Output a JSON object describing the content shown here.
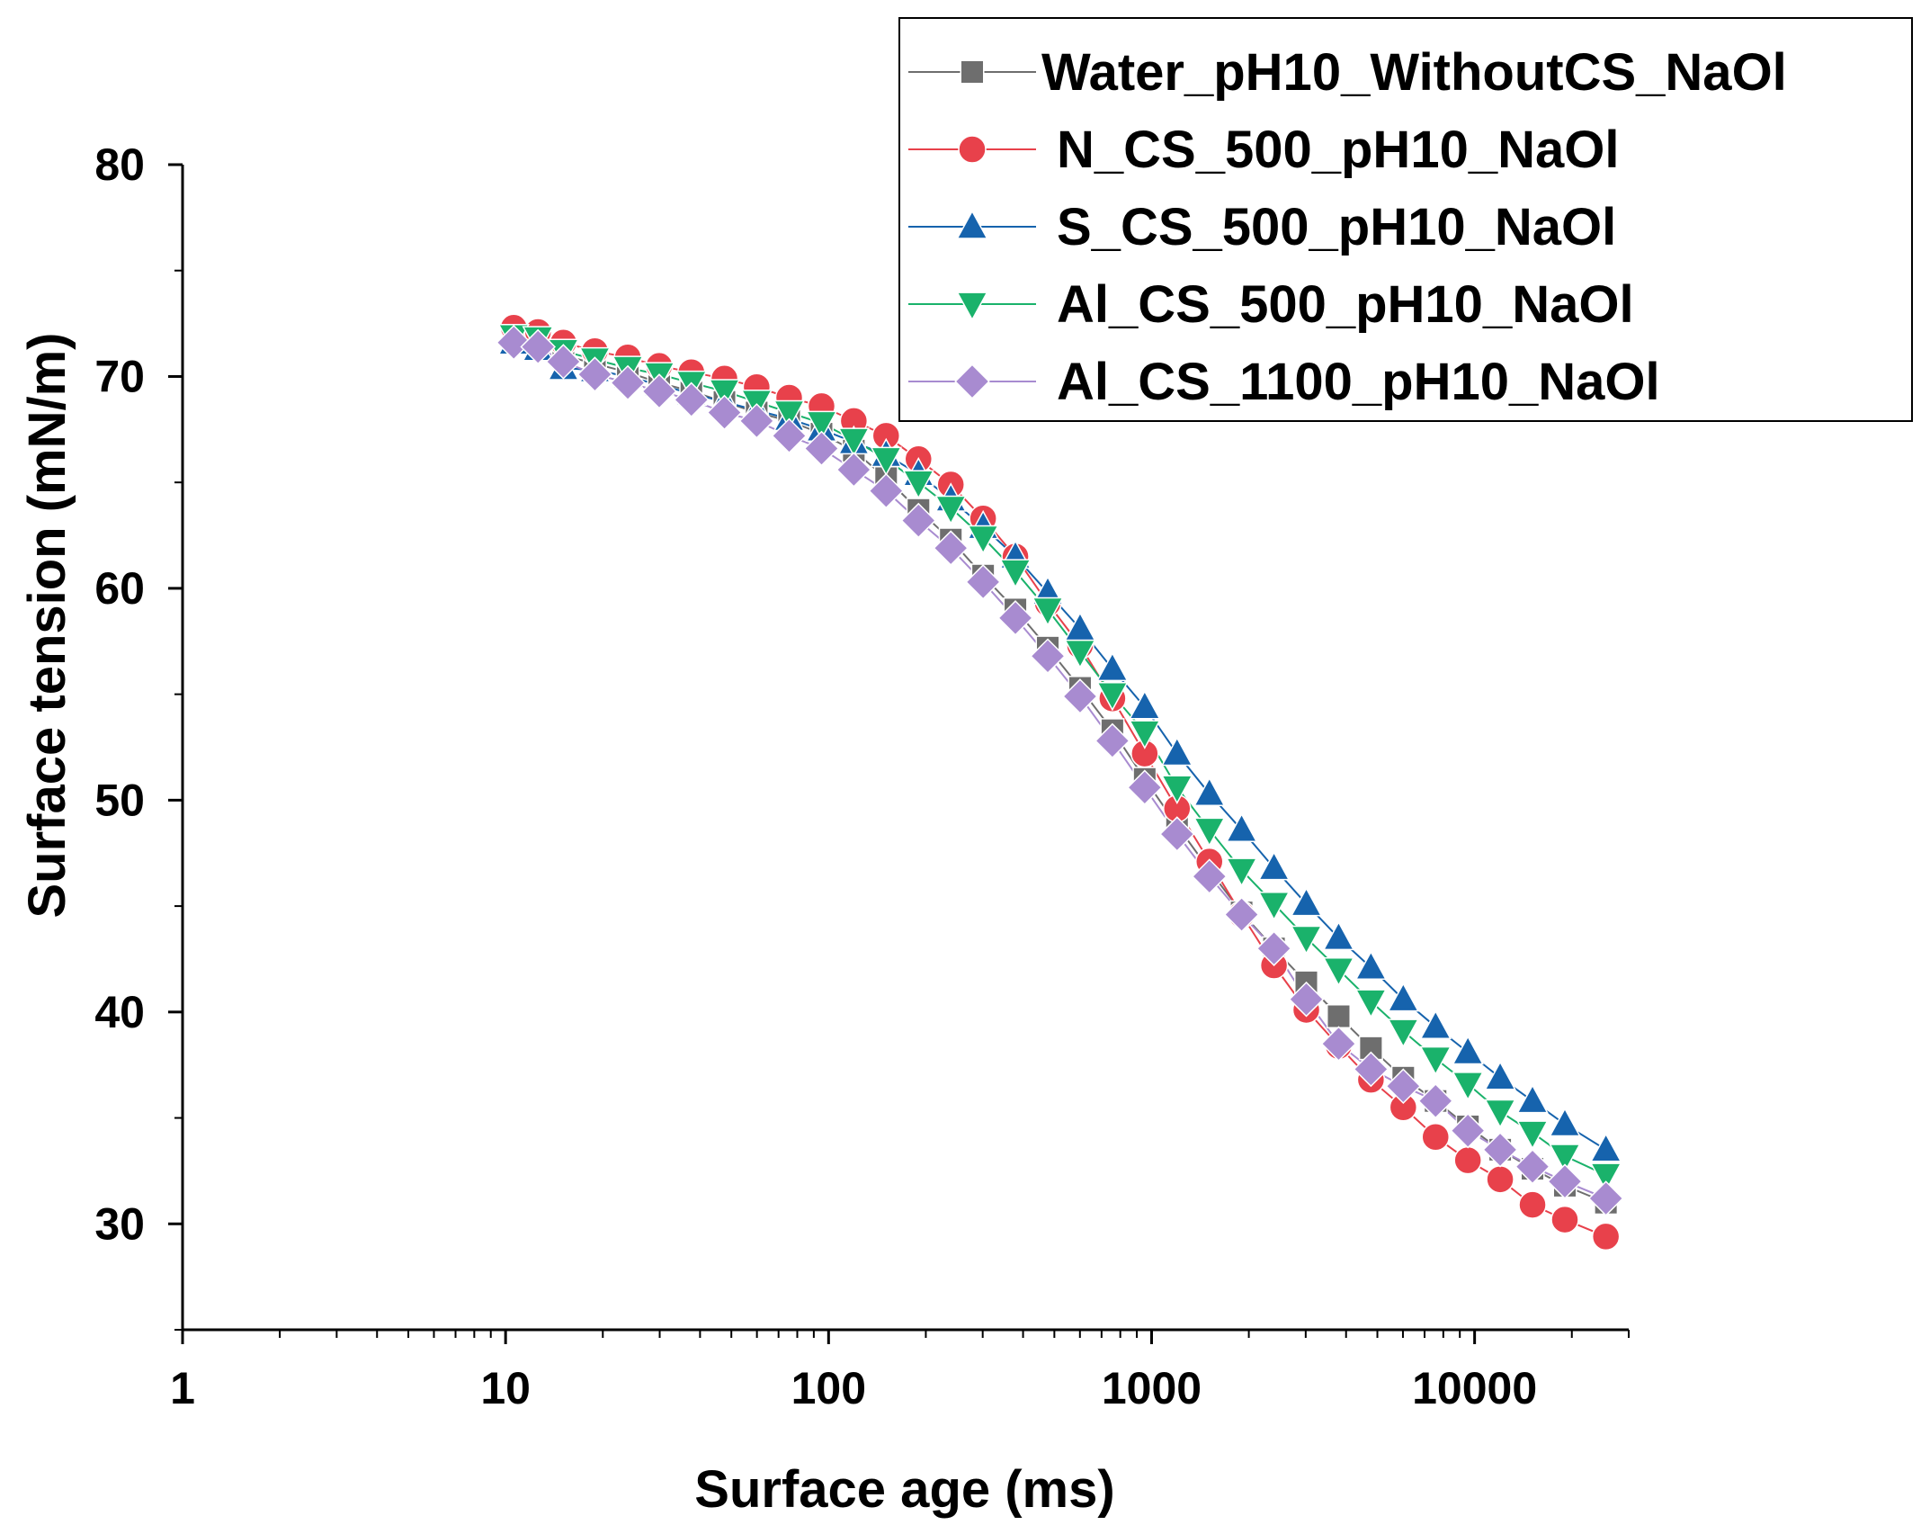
{
  "chart_data": {
    "type": "scatter",
    "xlabel": "Surface age (ms)",
    "ylabel": "Surface tension (mN/m)",
    "x_scale": "log",
    "xlim": [
      1,
      30000
    ],
    "ylim": [
      25,
      80
    ],
    "x_ticks": [
      {
        "value": 1,
        "label": "1"
      },
      {
        "value": 10,
        "label": "10"
      },
      {
        "value": 100,
        "label": "100"
      },
      {
        "value": 1000,
        "label": "1000"
      },
      {
        "value": 10000,
        "label": "10000"
      }
    ],
    "y_ticks": [
      {
        "value": 30,
        "label": "30"
      },
      {
        "value": 40,
        "label": "40"
      },
      {
        "value": 50,
        "label": "50"
      },
      {
        "value": 60,
        "label": "60"
      },
      {
        "value": 70,
        "label": "70"
      },
      {
        "value": 80,
        "label": "80"
      }
    ],
    "grid": false,
    "legend_position": "top-right",
    "x": [
      10.6,
      12.6,
      15.1,
      18.9,
      23.9,
      29.9,
      37.6,
      47.6,
      59.9,
      75.5,
      95.1,
      119.7,
      150.7,
      189.8,
      239.0,
      300.9,
      378.8,
      477.0,
      600.6,
      756.2,
      952.2,
      1199,
      1510,
      1900,
      2393,
      3013,
      3794,
      4776,
      6014,
      7572,
      9533,
      12000,
      15110,
      19030,
      25500
    ],
    "series": [
      {
        "name": "Water_pH10_WithoutCS_NaOl",
        "color": "#6e6e6e",
        "marker": "square",
        "values": [
          71.9,
          71.7,
          71.0,
          70.6,
          70.2,
          69.7,
          69.3,
          68.8,
          68.3,
          67.9,
          67.3,
          66.5,
          65.2,
          63.7,
          62.3,
          60.6,
          59.0,
          57.2,
          55.3,
          53.3,
          51.0,
          48.8,
          46.7,
          44.7,
          43.0,
          41.4,
          39.8,
          38.3,
          36.9,
          35.8,
          34.6,
          33.5,
          32.6,
          31.8,
          31.0
        ]
      },
      {
        "name": "N_CS_500_pH10_NaOl",
        "color": "#e8414b",
        "marker": "circle",
        "values": [
          72.3,
          72.1,
          71.6,
          71.2,
          70.9,
          70.5,
          70.2,
          69.9,
          69.5,
          69.0,
          68.6,
          67.9,
          67.2,
          66.1,
          64.9,
          63.3,
          61.5,
          59.3,
          57.3,
          54.8,
          52.2,
          49.6,
          47.1,
          44.6,
          42.2,
          40.1,
          38.4,
          36.8,
          35.5,
          34.1,
          33.0,
          32.1,
          30.9,
          30.2,
          29.4
        ]
      },
      {
        "name": "S_CS_500_pH10_NaOl",
        "color": "#1663ad",
        "marker": "triangle-up",
        "values": [
          71.6,
          71.3,
          70.4,
          70.3,
          70.0,
          69.6,
          69.2,
          68.8,
          68.4,
          68.0,
          67.5,
          66.9,
          66.3,
          65.4,
          64.2,
          62.9,
          61.5,
          59.8,
          58.1,
          56.2,
          54.4,
          52.2,
          50.3,
          48.6,
          46.8,
          45.1,
          43.5,
          42.1,
          40.6,
          39.3,
          38.1,
          36.9,
          35.8,
          34.7,
          33.5
        ]
      },
      {
        "name": "Al_CS_500_pH10_NaOl",
        "color": "#1ab26b",
        "marker": "triangle-down",
        "values": [
          71.9,
          71.8,
          71.2,
          70.8,
          70.4,
          70.1,
          69.7,
          69.3,
          68.8,
          68.3,
          67.8,
          67.0,
          66.1,
          65.0,
          63.8,
          62.4,
          60.8,
          59.0,
          57.0,
          55.0,
          53.2,
          50.6,
          48.6,
          46.7,
          45.1,
          43.5,
          42.0,
          40.5,
          39.1,
          37.8,
          36.6,
          35.3,
          34.3,
          33.2,
          32.3
        ]
      },
      {
        "name": "Al_CS_1100_pH10_NaOl",
        "color": "#a88bd0",
        "marker": "diamond",
        "values": [
          71.6,
          71.4,
          70.7,
          70.1,
          69.7,
          69.3,
          68.9,
          68.3,
          67.9,
          67.2,
          66.6,
          65.6,
          64.6,
          63.2,
          61.9,
          60.3,
          58.6,
          56.8,
          54.9,
          52.8,
          50.6,
          48.4,
          46.4,
          44.6,
          43.0,
          40.6,
          38.5,
          37.3,
          36.5,
          35.8,
          34.4,
          33.5,
          32.7,
          32.0,
          31.2
        ]
      }
    ]
  }
}
